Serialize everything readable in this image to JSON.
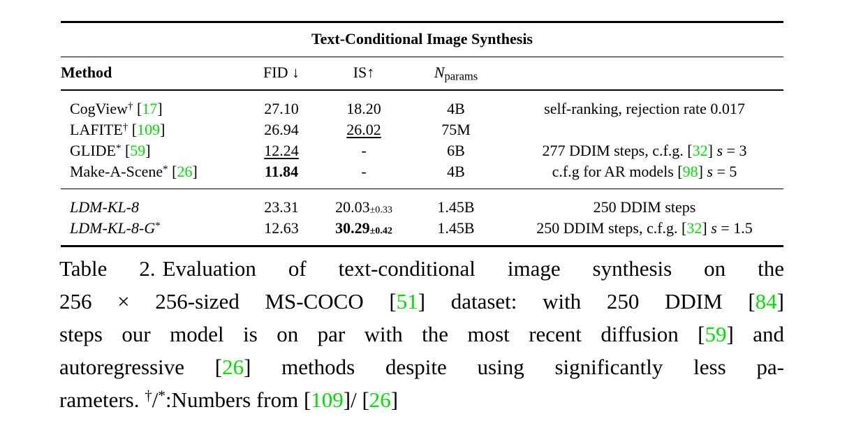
{
  "colors": {
    "citation_green": "#00e000",
    "text": "#000000",
    "background": "#ffffff",
    "rule": "#000000"
  },
  "table": {
    "title": "Text-Conditional Image Synthesis",
    "columns": [
      "method",
      "fid",
      "is",
      "nparams",
      "comment"
    ],
    "headers": {
      "method": [
        {
          "t": "Method",
          "s": [
            "b"
          ]
        }
      ],
      "fid": [
        {
          "t": "FID ↓"
        }
      ],
      "is": [
        {
          "t": "IS↑"
        }
      ],
      "nparams": [
        {
          "t": "N",
          "s": [
            "i"
          ]
        },
        {
          "t": "params",
          "s": [
            "sub"
          ]
        }
      ],
      "comment": []
    },
    "groups": [
      {
        "rows": [
          {
            "method": [
              {
                "t": "CogView"
              },
              {
                "t": "†",
                "s": [
                  "sup"
                ]
              },
              {
                "t": " ["
              },
              {
                "t": "17",
                "s": [
                  "green"
                ]
              },
              {
                "t": "]"
              }
            ],
            "fid": [
              {
                "t": "27.10"
              }
            ],
            "is": [
              {
                "t": "18.20"
              }
            ],
            "nparams": [
              {
                "t": "4B"
              }
            ],
            "comment": [
              {
                "t": "self-ranking, rejection rate 0.017"
              }
            ]
          },
          {
            "method": [
              {
                "t": "LAFITE"
              },
              {
                "t": "†",
                "s": [
                  "sup"
                ]
              },
              {
                "t": " ["
              },
              {
                "t": "109",
                "s": [
                  "green"
                ]
              },
              {
                "t": "]"
              }
            ],
            "fid": [
              {
                "t": "26.94"
              }
            ],
            "is": [
              {
                "t": "26.02",
                "s": [
                  "u"
                ]
              }
            ],
            "nparams": [
              {
                "t": "75M"
              }
            ],
            "comment": []
          },
          {
            "method": [
              {
                "t": "GLIDE"
              },
              {
                "t": "*",
                "s": [
                  "sup"
                ]
              },
              {
                "t": " ["
              },
              {
                "t": "59",
                "s": [
                  "green"
                ]
              },
              {
                "t": "]"
              }
            ],
            "fid": [
              {
                "t": "12.24",
                "s": [
                  "u"
                ]
              }
            ],
            "is": [
              {
                "t": "-"
              }
            ],
            "nparams": [
              {
                "t": "6B"
              }
            ],
            "comment": [
              {
                "t": "277 DDIM steps, c.f.g. ["
              },
              {
                "t": "32",
                "s": [
                  "green"
                ]
              },
              {
                "t": "] "
              },
              {
                "t": "s",
                "s": [
                  "i"
                ]
              },
              {
                "t": " = 3"
              }
            ]
          },
          {
            "method": [
              {
                "t": "Make-A-Scene"
              },
              {
                "t": "*",
                "s": [
                  "sup"
                ]
              },
              {
                "t": " ["
              },
              {
                "t": "26",
                "s": [
                  "green"
                ]
              },
              {
                "t": "]"
              }
            ],
            "fid": [
              {
                "t": "11.84",
                "s": [
                  "b"
                ]
              }
            ],
            "is": [
              {
                "t": "-"
              }
            ],
            "nparams": [
              {
                "t": "4B"
              }
            ],
            "comment": [
              {
                "t": "c.f.g for AR models ["
              },
              {
                "t": "98",
                "s": [
                  "green"
                ]
              },
              {
                "t": "] "
              },
              {
                "t": "s",
                "s": [
                  "i"
                ]
              },
              {
                "t": " = 5"
              }
            ]
          }
        ]
      },
      {
        "rows": [
          {
            "method": [
              {
                "t": "LDM-KL-8",
                "s": [
                  "i"
                ]
              }
            ],
            "fid": [
              {
                "t": "23.31"
              }
            ],
            "is": [
              {
                "t": "20.03"
              },
              {
                "t": "±0.33",
                "s": [
                  "pm"
                ]
              }
            ],
            "nparams": [
              {
                "t": "1.45B"
              }
            ],
            "comment": [
              {
                "t": "250 DDIM steps"
              }
            ]
          },
          {
            "method": [
              {
                "t": "LDM-KL-8-G",
                "s": [
                  "i"
                ]
              },
              {
                "t": "*",
                "s": [
                  "sup"
                ]
              }
            ],
            "fid": [
              {
                "t": "12.63"
              }
            ],
            "is": [
              {
                "t": "30.29",
                "s": [
                  "b"
                ]
              },
              {
                "t": "±0.42",
                "s": [
                  "pm",
                  "b"
                ]
              }
            ],
            "nparams": [
              {
                "t": "1.45B"
              }
            ],
            "comment": [
              {
                "t": "250 DDIM steps, c.f.g. ["
              },
              {
                "t": "32",
                "s": [
                  "green"
                ]
              },
              {
                "t": "] "
              },
              {
                "t": "s",
                "s": [
                  "i"
                ]
              },
              {
                "t": " = 1.5"
              }
            ]
          }
        ]
      }
    ]
  },
  "caption": {
    "lines": [
      {
        "justify": true,
        "segments": [
          {
            "t": "Table 2."
          },
          {
            "t": "",
            "s": [
              "gap"
            ]
          },
          {
            "t": "Evaluation of text-conditional image synthesis on the"
          }
        ]
      },
      {
        "justify": true,
        "segments": [
          {
            "t": "256 × 256-sized MS-COCO ["
          },
          {
            "t": "51",
            "s": [
              "green"
            ]
          },
          {
            "t": "] dataset: with 250 DDIM ["
          },
          {
            "t": "84",
            "s": [
              "green"
            ]
          },
          {
            "t": "]"
          }
        ]
      },
      {
        "justify": true,
        "segments": [
          {
            "t": "steps our model is on par with the most recent diffusion ["
          },
          {
            "t": "59",
            "s": [
              "green"
            ]
          },
          {
            "t": "] and"
          }
        ]
      },
      {
        "justify": true,
        "segments": [
          {
            "t": "autoregressive ["
          },
          {
            "t": "26",
            "s": [
              "green"
            ]
          },
          {
            "t": "] methods despite using significantly less pa-"
          }
        ]
      },
      {
        "justify": false,
        "segments": [
          {
            "t": "rameters. "
          },
          {
            "t": "†",
            "s": [
              "sup"
            ]
          },
          {
            "t": "/"
          },
          {
            "t": "*",
            "s": [
              "sup"
            ]
          },
          {
            "t": ":Numbers from ["
          },
          {
            "t": "109",
            "s": [
              "green"
            ]
          },
          {
            "t": "]/ ["
          },
          {
            "t": "26",
            "s": [
              "green"
            ]
          },
          {
            "t": "]"
          }
        ]
      }
    ]
  }
}
